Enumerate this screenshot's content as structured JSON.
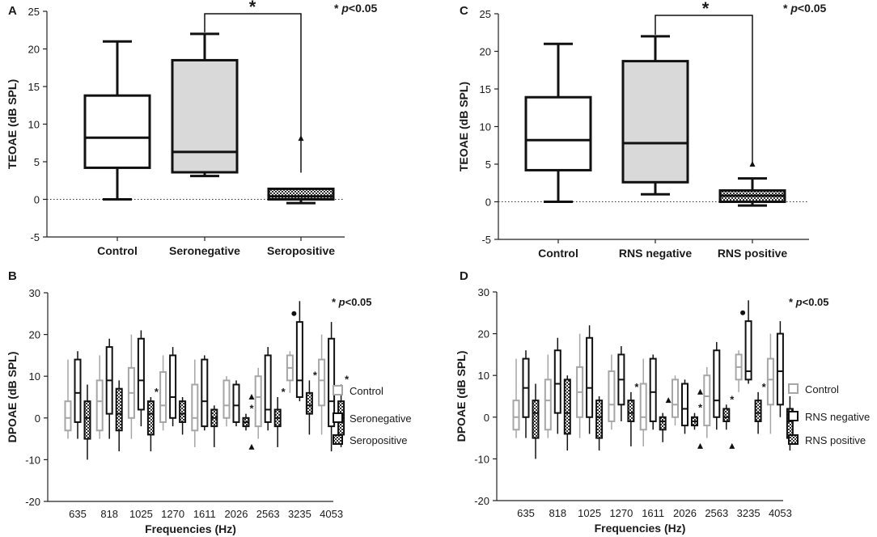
{
  "chart_data": [
    {
      "panel": "A",
      "type": "box",
      "ylabel": "TEOAE (dB SPL)",
      "ylim": [
        -5,
        25
      ],
      "yticks": [
        -5,
        0,
        5,
        10,
        15,
        20,
        25
      ],
      "significance_note": "* p<0.05",
      "reference_line": 0,
      "categories": [
        "Control",
        "Seronegative",
        "Seropositive"
      ],
      "boxes": [
        {
          "name": "Control",
          "min": 0,
          "q1": 4.2,
          "median": 8.2,
          "q3": 13.8,
          "max": 21,
          "fill": "#ffffff",
          "outliers": []
        },
        {
          "name": "Seronegative",
          "min": 3.1,
          "q1": 3.6,
          "median": 6.3,
          "q3": 18.5,
          "max": 22,
          "fill": "#d9d9d9",
          "outliers": []
        },
        {
          "name": "Seropositive",
          "min": -0.5,
          "q1": 0,
          "median": 0.4,
          "q3": 1.4,
          "max": 1.4,
          "fill": "hatch",
          "outliers": [
            8.1
          ]
        }
      ],
      "significance": [
        {
          "from": "Seronegative",
          "to": "Seropositive",
          "label": "*"
        }
      ]
    },
    {
      "panel": "C",
      "type": "box",
      "ylabel": "TEOAE (dB SPL)",
      "ylim": [
        -5,
        25
      ],
      "yticks": [
        -5,
        0,
        5,
        10,
        15,
        20,
        25
      ],
      "significance_note": "* p<0.05",
      "reference_line": 0,
      "categories": [
        "Control",
        "RNS negative",
        "RNS positive"
      ],
      "boxes": [
        {
          "name": "Control",
          "min": 0,
          "q1": 4.2,
          "median": 8.2,
          "q3": 13.9,
          "max": 21,
          "fill": "#ffffff",
          "outliers": []
        },
        {
          "name": "RNS negative",
          "min": 1,
          "q1": 2.6,
          "median": 7.8,
          "q3": 18.7,
          "max": 22,
          "fill": "#d9d9d9",
          "outliers": []
        },
        {
          "name": "RNS positive",
          "min": -0.5,
          "q1": 0,
          "median": 0.8,
          "q3": 1.5,
          "max": 3.1,
          "fill": "hatch",
          "outliers": [
            5
          ]
        }
      ],
      "significance": [
        {
          "from": "RNS negative",
          "to": "RNS positive",
          "label": "*"
        }
      ]
    },
    {
      "panel": "B",
      "type": "grouped-box",
      "ylabel": "DPOAE (dB SPL)",
      "xlabel": "Frequencies (Hz)",
      "ylim": [
        -20,
        30
      ],
      "yticks": [
        -20,
        -10,
        0,
        10,
        20,
        30
      ],
      "significance_note": "* p<0.05",
      "categories": [
        "635",
        "818",
        "1025",
        "1270",
        "1611",
        "2026",
        "2563",
        "3235",
        "4053"
      ],
      "legend": [
        "Control",
        "Seronegative",
        "Seropositive"
      ],
      "series": [
        {
          "name": "Control",
          "boxes": [
            {
              "min": -5,
              "q1": -3,
              "median": 0,
              "q3": 4,
              "max": 14
            },
            {
              "min": -5,
              "q1": -3,
              "median": 4,
              "q3": 9,
              "max": 15
            },
            {
              "min": -5,
              "q1": 0,
              "median": 6,
              "q3": 12,
              "max": 20
            },
            {
              "min": -3,
              "q1": -1,
              "median": 3,
              "q3": 11,
              "max": 15
            },
            {
              "min": -7,
              "q1": -3,
              "median": 0,
              "q3": 8,
              "max": 14
            },
            {
              "min": -2,
              "q1": 0,
              "median": 3,
              "q3": 9,
              "max": 10
            },
            {
              "min": -5,
              "q1": -2,
              "median": 5,
              "q3": 10,
              "max": 12
            },
            {
              "min": 6,
              "q1": 9,
              "median": 12,
              "q3": 15,
              "max": 16
            },
            {
              "min": -4,
              "q1": 3,
              "median": 9,
              "q3": 14,
              "max": 20
            }
          ]
        },
        {
          "name": "Seronegative",
          "boxes": [
            {
              "min": -5,
              "q1": -1,
              "median": 6,
              "q3": 14,
              "max": 16,
              "outliers": []
            },
            {
              "min": -5,
              "q1": 1,
              "median": 9,
              "q3": 17,
              "max": 19,
              "outliers": []
            },
            {
              "min": -2,
              "q1": 2,
              "median": 9,
              "q3": 19,
              "max": 21,
              "outliers": []
            },
            {
              "min": -2,
              "q1": 0,
              "median": 5,
              "q3": 15,
              "max": 17,
              "outliers": []
            },
            {
              "min": -3,
              "q1": -2,
              "median": 4,
              "q3": 14,
              "max": 15,
              "outliers": []
            },
            {
              "min": -2,
              "q1": -1,
              "median": 3,
              "q3": 8,
              "max": 9,
              "outliers": []
            },
            {
              "min": -3,
              "q1": -1,
              "median": 2,
              "q3": 15,
              "max": 17,
              "outliers": []
            },
            {
              "min": 4,
              "q1": 5,
              "median": 9,
              "q3": 23,
              "max": 28,
              "outliers": [
                25
              ]
            },
            {
              "min": -8,
              "q1": -2,
              "median": 4,
              "q3": 19,
              "max": 23,
              "outliers": []
            }
          ]
        },
        {
          "name": "Seropositive",
          "boxes": [
            {
              "min": -10,
              "q1": -5,
              "median": 0,
              "q3": 4,
              "max": 8,
              "outliers": [],
              "sig": false
            },
            {
              "min": -8,
              "q1": -3,
              "median": 1,
              "q3": 7,
              "max": 9,
              "outliers": [],
              "sig": false
            },
            {
              "min": -8,
              "q1": -4,
              "median": 1,
              "q3": 4,
              "max": 5,
              "outliers": [],
              "sig": true
            },
            {
              "min": -4,
              "q1": -1,
              "median": 1,
              "q3": 4,
              "max": 5,
              "outliers": [],
              "sig": false
            },
            {
              "min": -7,
              "q1": -2,
              "median": 0,
              "q3": 2,
              "max": 3,
              "outliers": [],
              "sig": false
            },
            {
              "min": -3,
              "q1": -2,
              "median": -1,
              "q3": 0,
              "max": 1,
              "outliers": [
                -7,
                5
              ],
              "sig": true
            },
            {
              "min": -7,
              "q1": -2,
              "median": 0,
              "q3": 2,
              "max": 5,
              "outliers": [],
              "sig": true
            },
            {
              "min": -4,
              "q1": 1,
              "median": 3,
              "q3": 6,
              "max": 9,
              "outliers": [],
              "sig": true
            },
            {
              "min": -7,
              "q1": -4,
              "median": 0,
              "q3": 4,
              "max": 8,
              "outliers": [],
              "sig": true
            }
          ]
        }
      ]
    },
    {
      "panel": "D",
      "type": "grouped-box",
      "ylabel": "DPOAE (dB SPL)",
      "xlabel": "Frequencies (Hz)",
      "ylim": [
        -20,
        30
      ],
      "yticks": [
        -20,
        -10,
        0,
        10,
        20,
        30
      ],
      "significance_note": "* p<0.05",
      "categories": [
        "635",
        "818",
        "1025",
        "1270",
        "1611",
        "2026",
        "2563",
        "3235",
        "4053"
      ],
      "legend": [
        "Control",
        "RNS negative",
        "RNS positive"
      ],
      "series": [
        {
          "name": "Control",
          "boxes": [
            {
              "min": -5,
              "q1": -3,
              "median": 0,
              "q3": 4,
              "max": 14
            },
            {
              "min": -5,
              "q1": -3,
              "median": 4,
              "q3": 9,
              "max": 15
            },
            {
              "min": -5,
              "q1": 0,
              "median": 6,
              "q3": 12,
              "max": 20
            },
            {
              "min": -3,
              "q1": -1,
              "median": 3,
              "q3": 11,
              "max": 15
            },
            {
              "min": -7,
              "q1": -3,
              "median": 0,
              "q3": 8,
              "max": 14
            },
            {
              "min": -2,
              "q1": 0,
              "median": 3,
              "q3": 9,
              "max": 10
            },
            {
              "min": -5,
              "q1": -2,
              "median": 5,
              "q3": 10,
              "max": 12
            },
            {
              "min": 6,
              "q1": 9,
              "median": 12,
              "q3": 15,
              "max": 16
            },
            {
              "min": -4,
              "q1": 3,
              "median": 9,
              "q3": 14,
              "max": 20
            }
          ]
        },
        {
          "name": "RNS negative",
          "boxes": [
            {
              "min": -5,
              "q1": 0,
              "median": 7,
              "q3": 14,
              "max": 16,
              "outliers": []
            },
            {
              "min": -4,
              "q1": 1,
              "median": 8,
              "q3": 16,
              "max": 19,
              "outliers": []
            },
            {
              "min": -4,
              "q1": 0,
              "median": 7,
              "q3": 19,
              "max": 22,
              "outliers": []
            },
            {
              "min": -1,
              "q1": 3,
              "median": 9,
              "q3": 15,
              "max": 17,
              "outliers": []
            },
            {
              "min": -3,
              "q1": -1,
              "median": 6,
              "q3": 14,
              "max": 15,
              "outliers": []
            },
            {
              "min": -4,
              "q1": -2,
              "median": 2,
              "q3": 8,
              "max": 9,
              "outliers": []
            },
            {
              "min": -3,
              "q1": 0,
              "median": 4,
              "q3": 16,
              "max": 18,
              "outliers": []
            },
            {
              "min": 8,
              "q1": 9,
              "median": 11,
              "q3": 23,
              "max": 28,
              "outliers": [
                25
              ]
            },
            {
              "min": 0,
              "q1": 3,
              "median": 11,
              "q3": 20,
              "max": 23,
              "outliers": []
            }
          ]
        },
        {
          "name": "RNS positive",
          "boxes": [
            {
              "min": -10,
              "q1": -5,
              "median": 1,
              "q3": 4,
              "max": 8,
              "outliers": [],
              "sig": false
            },
            {
              "min": -8,
              "q1": -4,
              "median": 1,
              "q3": 9,
              "max": 10,
              "outliers": [],
              "sig": false
            },
            {
              "min": -8,
              "q1": -5,
              "median": 0,
              "q3": 4,
              "max": 5,
              "outliers": [],
              "sig": false
            },
            {
              "min": -7,
              "q1": -1,
              "median": 1,
              "q3": 4,
              "max": 6,
              "outliers": [],
              "sig": true
            },
            {
              "min": -6,
              "q1": -3,
              "median": -1,
              "q3": 0,
              "max": 1,
              "outliers": [
                4
              ],
              "sig": false
            },
            {
              "min": -3,
              "q1": -2,
              "median": -1,
              "q3": 0,
              "max": 1,
              "outliers": [
                -7,
                6
              ],
              "sig": true
            },
            {
              "min": -3,
              "q1": -1,
              "median": 0,
              "q3": 2,
              "max": 3,
              "outliers": [
                -7
              ],
              "sig": true
            },
            {
              "min": -4,
              "q1": -1,
              "median": 1,
              "q3": 4,
              "max": 6,
              "outliers": [],
              "sig": true
            },
            {
              "min": -8,
              "q1": -5,
              "median": -1,
              "q3": 2,
              "max": 5,
              "outliers": [],
              "sig": true
            }
          ]
        }
      ]
    }
  ]
}
